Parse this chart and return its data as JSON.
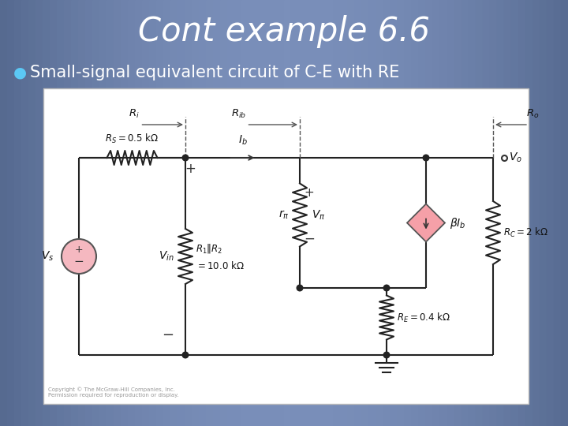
{
  "title": "Cont example 6.6",
  "bullet_text": "Small-signal equivalent circuit of C-E with RE",
  "title_color": "#ffffff",
  "bullet_color": "#ffffff",
  "bullet_dot_color": "#5bc8f5",
  "source_fill": "#f5b8c0",
  "diamond_fill": "#f5a0a8",
  "label_color": "#111111",
  "wire_color": "#222222",
  "copyright_text": "Copyright © The McGraw-Hill Companies, Inc.\nPermission required for reproduction or display.",
  "bg_left": "#566a90",
  "bg_center": "#7a8fba",
  "bg_right": "#566a90"
}
